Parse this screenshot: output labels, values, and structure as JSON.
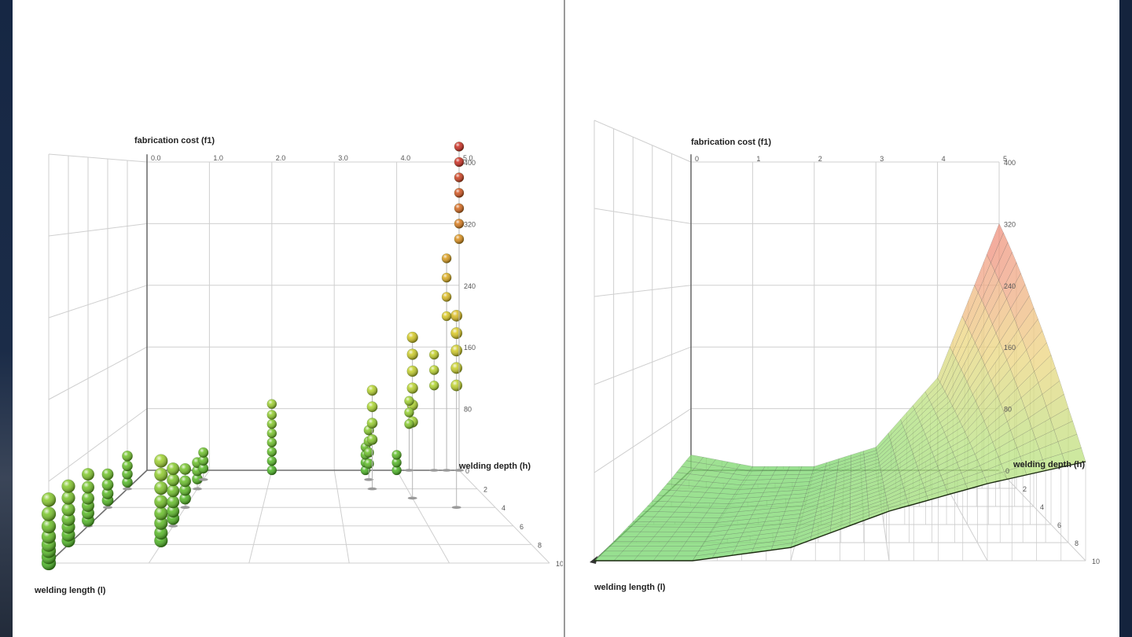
{
  "chart_data": [
    {
      "type": "scatter",
      "projection": "3d",
      "zlabel": "fabrication cost (f1)",
      "xlabel": "welding length (l)",
      "ylabel": "welding depth (h)",
      "x_ticks": [
        "0.0",
        "1.0",
        "2.0",
        "3.0",
        "4.0",
        "5.0"
      ],
      "y_ticks": [
        "0",
        "2",
        "4",
        "6",
        "8",
        "10"
      ],
      "z_ticks": [
        "400",
        "320",
        "240",
        "160",
        "80"
      ],
      "xlim": [
        0,
        5
      ],
      "ylim": [
        0,
        10
      ],
      "zlim": [
        0,
        400
      ],
      "colormap": [
        "#44b21c",
        "#a8d42a",
        "#d8c51c",
        "#d98a14",
        "#c8261a"
      ],
      "grid": true,
      "columns": [
        {
          "x": 0.0,
          "y": 10,
          "z": [
            0,
            6,
            12,
            18,
            26,
            36,
            48,
            62
          ]
        },
        {
          "x": 0.0,
          "y": 8,
          "z": [
            4,
            10,
            18,
            26,
            36,
            48,
            60
          ]
        },
        {
          "x": 0.0,
          "y": 6,
          "z": [
            6,
            14,
            22,
            30,
            42,
            56
          ]
        },
        {
          "x": 0.0,
          "y": 4,
          "z": [
            8,
            16,
            26,
            38
          ]
        },
        {
          "x": 0.0,
          "y": 2,
          "z": [
            8,
            18,
            28,
            40
          ]
        },
        {
          "x": 1.0,
          "y": 8,
          "z": [
            4,
            12,
            22,
            32,
            44,
            58,
            72,
            86
          ]
        },
        {
          "x": 1.0,
          "y": 6,
          "z": [
            8,
            16,
            26,
            38,
            50,
            62
          ]
        },
        {
          "x": 1.0,
          "y": 4,
          "z": [
            10,
            20,
            30,
            44
          ]
        },
        {
          "x": 1.0,
          "y": 2,
          "z": [
            12,
            22,
            32
          ]
        },
        {
          "x": 1.0,
          "y": 1,
          "z": [
            14,
            24,
            34
          ]
        },
        {
          "x": 2.0,
          "y": 0,
          "z": [
            0,
            12,
            24,
            36,
            48,
            60,
            72,
            86
          ]
        },
        {
          "x": 3.5,
          "y": 0,
          "z": [
            0,
            10,
            20,
            30
          ]
        },
        {
          "x": 3.5,
          "y": 1,
          "z": [
            20,
            34,
            48,
            62
          ]
        },
        {
          "x": 3.5,
          "y": 2,
          "z": [
            60,
            80,
            100,
            120
          ]
        },
        {
          "x": 4.0,
          "y": 3,
          "z": [
            90,
            110,
            130,
            150,
            170,
            190
          ]
        },
        {
          "x": 4.5,
          "y": 4,
          "z": [
            140,
            160,
            180,
            200,
            220
          ]
        },
        {
          "x": 4.0,
          "y": 0,
          "z": [
            0,
            10,
            20
          ]
        },
        {
          "x": 4.2,
          "y": 0,
          "z": [
            60,
            75,
            90
          ]
        },
        {
          "x": 4.6,
          "y": 0,
          "z": [
            110,
            130,
            150
          ]
        },
        {
          "x": 4.8,
          "y": 0,
          "z": [
            200,
            225,
            250,
            275
          ]
        },
        {
          "x": 5.0,
          "y": 0,
          "z": [
            300,
            320,
            340,
            360,
            380,
            400,
            420
          ]
        }
      ]
    },
    {
      "type": "surface",
      "projection": "3d",
      "zlabel": "fabrication cost (f1)",
      "xlabel": "welding length (l)",
      "ylabel": "welding depth (h)",
      "x_ticks": [
        "0",
        "1",
        "2",
        "3",
        "4",
        "5"
      ],
      "y_ticks": [
        "0",
        "2",
        "4",
        "6",
        "8",
        "10"
      ],
      "z_ticks": [
        "400",
        "320",
        "240",
        "160",
        "80"
      ],
      "xlim": [
        0,
        5
      ],
      "ylim": [
        0,
        10
      ],
      "zlim": [
        0,
        400
      ],
      "colormap": [
        "#44b21c",
        "#a8d42a",
        "#d8c51c",
        "#d98a14",
        "#c8261a"
      ],
      "grid": true,
      "x": [
        0,
        1,
        2,
        3,
        4,
        5
      ],
      "y": [
        0,
        2,
        4,
        6,
        8,
        10
      ],
      "z_grid": [
        [
          20,
          5,
          5,
          30,
          120,
          320
        ],
        [
          12,
          4,
          8,
          35,
          110,
          270
        ],
        [
          6,
          3,
          10,
          38,
          100,
          220
        ],
        [
          3,
          2,
          11,
          40,
          90,
          175
        ],
        [
          1,
          1,
          12,
          42,
          80,
          130
        ],
        [
          0,
          0,
          12,
          45,
          70,
          90
        ]
      ]
    }
  ]
}
